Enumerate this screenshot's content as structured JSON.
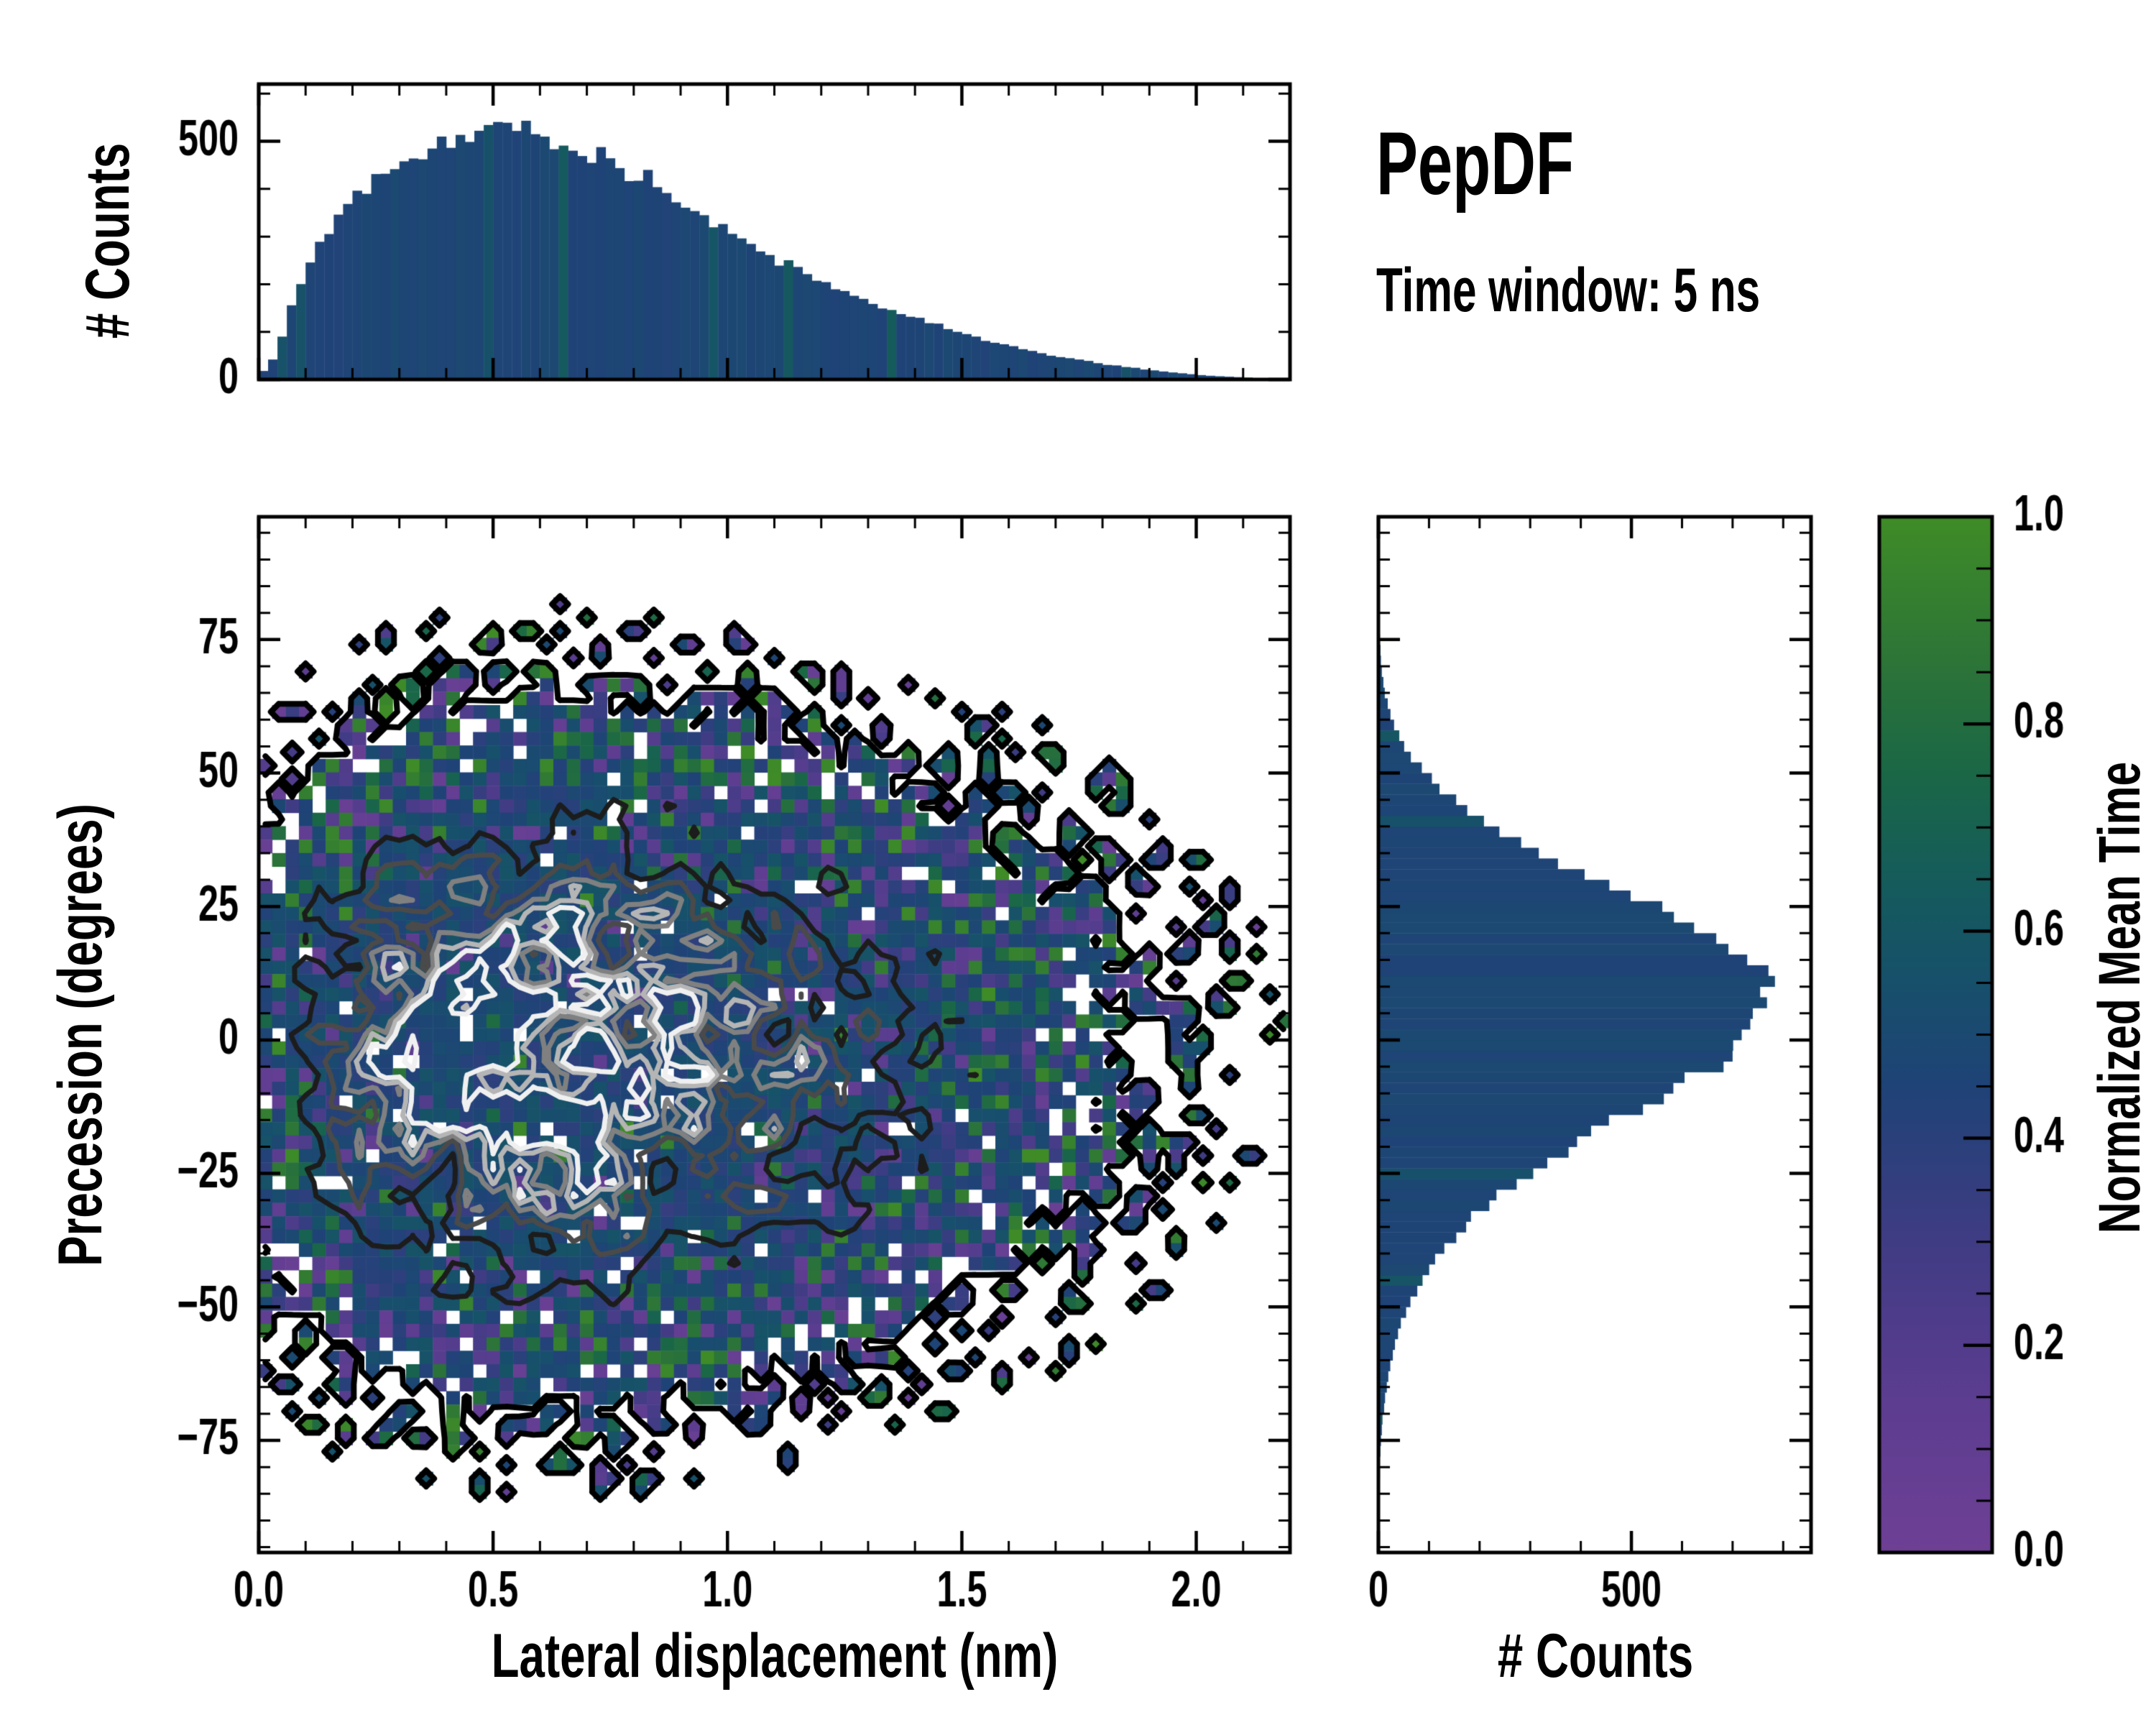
{
  "annotation": {
    "title": "PepDF",
    "subtitle": "Time window: 5 ns"
  },
  "labels": {
    "top_y": "# Counts",
    "main_x": "Lateral displacement (nm)",
    "main_y": "Precession (degrees)",
    "right_x": "# Counts",
    "colorbar": "Normalized Mean Time"
  },
  "colors": {
    "bar_navy": "#17486f",
    "spine": "#000000",
    "background": "#ffffff"
  },
  "chart_data": [
    {
      "id": "top_histogram",
      "type": "bar",
      "orientation": "vertical",
      "ylabel": "# Counts",
      "xlim": [
        0,
        2.2
      ],
      "ylim": [
        0,
        620
      ],
      "bin_start": 0,
      "bin_width": 0.02,
      "y_tick_labels": [
        {
          "v": 0,
          "t": "0"
        },
        {
          "v": 500,
          "t": "500"
        }
      ],
      "y_minor_step": 100,
      "x_major_step": 0.5,
      "x_minor_step": 0.1,
      "values": [
        18,
        42,
        88,
        152,
        198,
        252,
        281,
        310,
        352,
        368,
        401,
        395,
        428,
        442,
        455,
        447,
        469,
        458,
        488,
        502,
        491,
        512,
        498,
        523,
        539,
        556,
        541,
        518,
        533,
        512,
        509,
        498,
        505,
        481,
        473,
        466,
        479,
        452,
        441,
        429,
        418,
        433,
        397,
        392,
        378,
        369,
        347,
        342,
        329,
        318,
        308,
        288,
        283,
        269,
        258,
        243,
        247,
        232,
        221,
        208,
        199,
        193,
        186,
        178,
        168,
        163,
        152,
        148,
        141,
        131,
        126,
        119,
        114,
        106,
        99,
        94,
        89,
        83,
        79,
        73,
        69,
        64,
        60,
        55,
        51,
        48,
        44,
        41,
        38,
        34,
        31,
        29,
        26,
        24,
        21,
        19,
        17,
        15,
        13,
        11,
        9,
        8,
        7,
        6,
        5,
        4,
        3,
        3,
        2,
        2
      ]
    },
    {
      "id": "joint_heatmap",
      "type": "heatmap",
      "xlabel": "Lateral displacement (nm)",
      "ylabel": "Precession (degrees)",
      "xlim": [
        0,
        2.2
      ],
      "ylim": [
        -96,
        98
      ],
      "x_tick_labels": [
        {
          "v": 0.0,
          "t": "0.0"
        },
        {
          "v": 0.5,
          "t": "0.5"
        },
        {
          "v": 1.0,
          "t": "1.0"
        },
        {
          "v": 1.5,
          "t": "1.5"
        },
        {
          "v": 2.0,
          "t": "2.0"
        }
      ],
      "y_tick_labels": [
        {
          "v": 75,
          "t": "75"
        },
        {
          "v": 50,
          "t": "50"
        },
        {
          "v": 25,
          "t": "25"
        },
        {
          "v": 0,
          "t": "0"
        },
        {
          "v": -25,
          "t": "−25"
        },
        {
          "v": -50,
          "t": "−50"
        },
        {
          "v": -75,
          "t": "−75"
        }
      ],
      "x_minor_step": 0.1,
      "y_minor_step": 5,
      "grid_nx": 77,
      "grid_ny": 77,
      "model": {
        "seed": 11,
        "center_x": 0.52,
        "center_y": -2,
        "sigma_x_left": 0.3,
        "sigma_x_right": 0.62,
        "sigma_y": 31,
        "fill_gain": 6.0,
        "min_density": 0.025,
        "hole_prob": 0.04,
        "core_value_base": 0.38,
        "core_value_spread": 0.2,
        "edge_purple_base": 0.06,
        "edge_purple_gain": 0.3,
        "edge_green_base": 0.04,
        "edge_green_gain": 0.25
      },
      "contour_levels": [
        {
          "level": 0.02,
          "color": "#000000",
          "width": 8
        },
        {
          "level": 0.38,
          "color": "#1c1c1c",
          "width": 7
        },
        {
          "level": 0.55,
          "color": "#4a4a4a",
          "width": 7
        },
        {
          "level": 0.7,
          "color": "#808080",
          "width": 7
        },
        {
          "level": 0.82,
          "color": "#b5b5b5",
          "width": 7
        },
        {
          "level": 0.92,
          "color": "#f0f0f0",
          "width": 7
        }
      ]
    },
    {
      "id": "right_histogram",
      "type": "bar",
      "orientation": "horizontal",
      "xlabel": "# Counts",
      "xlim": [
        0,
        855
      ],
      "ylim": [
        -96,
        98
      ],
      "bin_start": -96,
      "bin_width": 2,
      "x_tick_labels": [
        {
          "v": 0,
          "t": "0"
        },
        {
          "v": 500,
          "t": "500"
        }
      ],
      "x_minor_step": 100,
      "y_minor_step": 5,
      "values": [
        0,
        0,
        1,
        1,
        1,
        2,
        2,
        3,
        3,
        4,
        5,
        7,
        8,
        11,
        13,
        16,
        19,
        23,
        28,
        33,
        39,
        46,
        55,
        64,
        75,
        86,
        99,
        115,
        131,
        149,
        168,
        190,
        215,
        241,
        268,
        299,
        331,
        365,
        401,
        437,
        474,
        512,
        549,
        587,
        623,
        657,
        688,
        715,
        738,
        757,
        769,
        774,
        771,
        760,
        744,
        723,
        697,
        665,
        629,
        589,
        546,
        502,
        457,
        412,
        368,
        326,
        285,
        247,
        212,
        180,
        151,
        125,
        102,
        83,
        66,
        52,
        41,
        31,
        24,
        18,
        13,
        10,
        7,
        5,
        4,
        3,
        2,
        1,
        1,
        1,
        0,
        0,
        0,
        0,
        0,
        0
      ]
    },
    {
      "id": "colorbar",
      "type": "colorbar",
      "title": "Normalized Mean Time",
      "tick_labels": [
        {
          "v": 0.0,
          "t": "0.0"
        },
        {
          "v": 0.2,
          "t": "0.2"
        },
        {
          "v": 0.4,
          "t": "0.4"
        },
        {
          "v": 0.6,
          "t": "0.6"
        },
        {
          "v": 0.8,
          "t": "0.8"
        },
        {
          "v": 1.0,
          "t": "1.0"
        }
      ],
      "minor_step": 0.05,
      "gradient": [
        [
          0.0,
          "#6e4095"
        ],
        [
          0.15,
          "#5c3d90"
        ],
        [
          0.3,
          "#403c84"
        ],
        [
          0.45,
          "#1f4377"
        ],
        [
          0.55,
          "#17506b"
        ],
        [
          0.65,
          "#155c5b"
        ],
        [
          0.75,
          "#1a6747"
        ],
        [
          0.85,
          "#2b7339"
        ],
        [
          1.0,
          "#3f8c27"
        ]
      ]
    }
  ]
}
